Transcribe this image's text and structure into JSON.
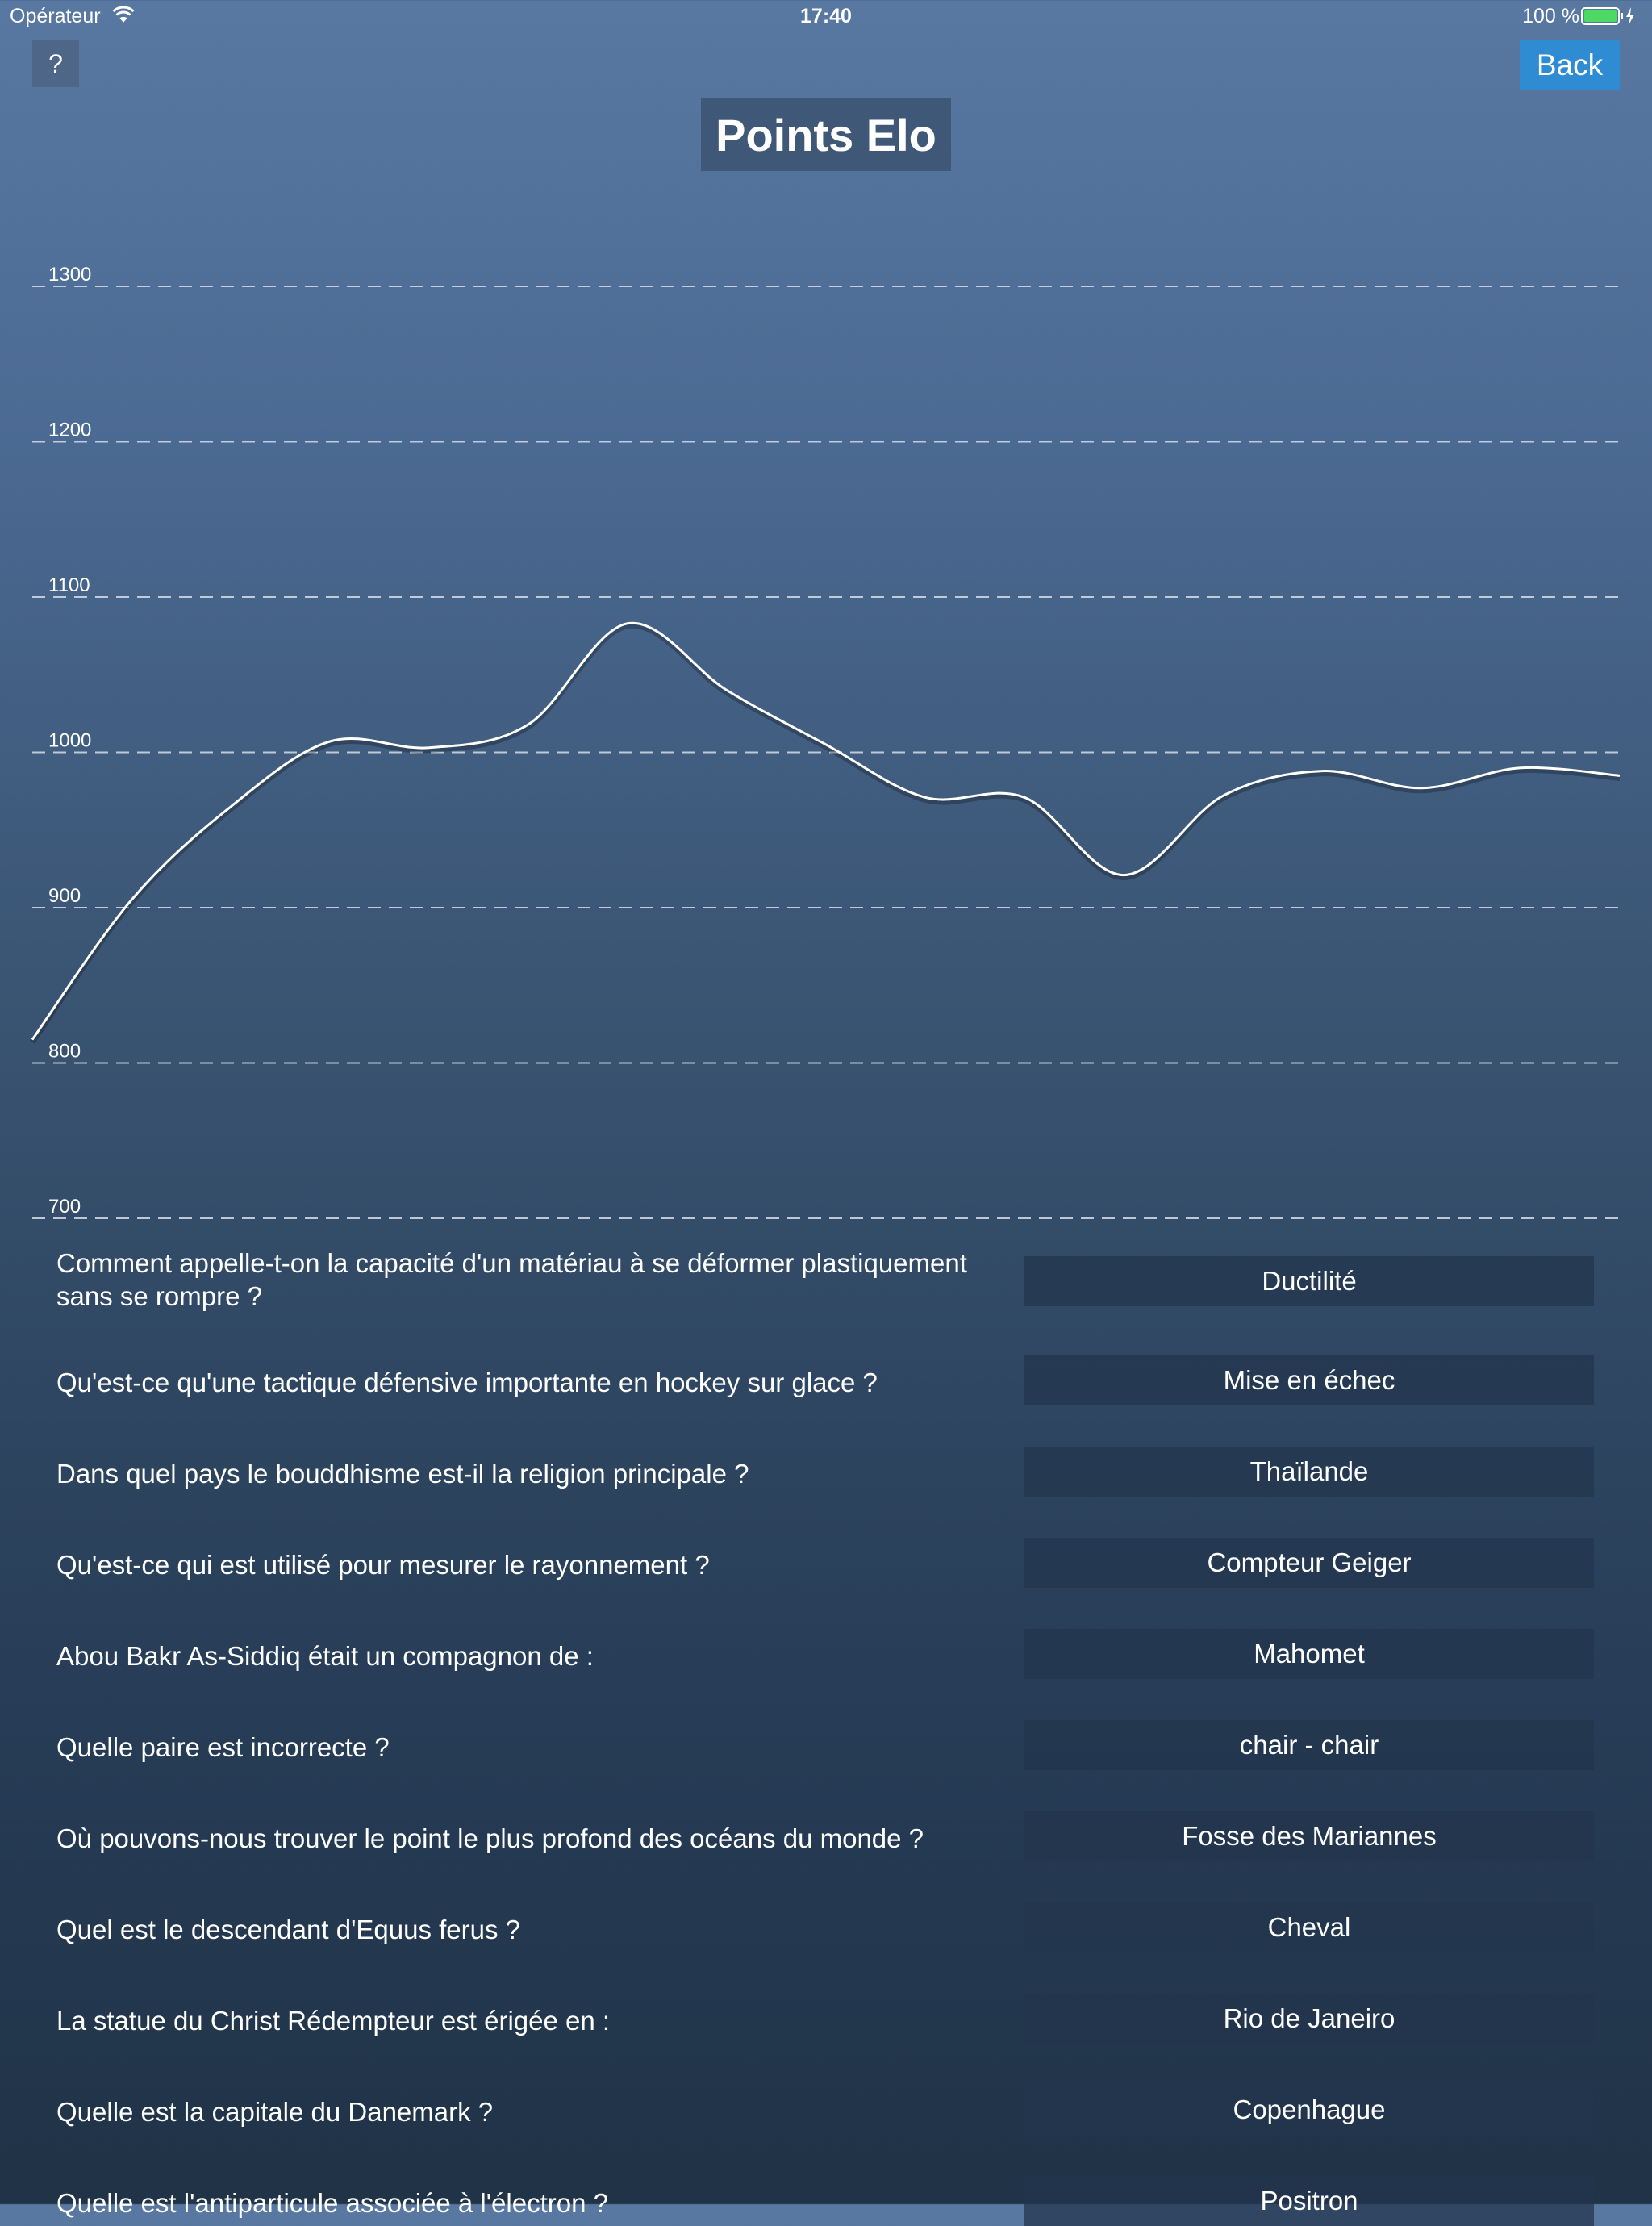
{
  "status_bar": {
    "carrier": "Opérateur",
    "time": "17:40",
    "battery": "100 %",
    "icons": [
      "wifi-icon",
      "battery-icon",
      "charging-bolt-icon"
    ],
    "battery_color": "#4cd964"
  },
  "header": {
    "help_label": "?",
    "back_label": "Back",
    "title": "Points Elo"
  },
  "colors": {
    "back_button": "#2f8bd2",
    "title_background": "#3f5878",
    "line": "#ffffff",
    "grid": "#d6dde8"
  },
  "chart_data": {
    "type": "line",
    "title": "",
    "xlabel": "",
    "ylabel": "",
    "ylim": [
      700,
      1300
    ],
    "yticks": [
      1300,
      1200,
      1100,
      1000,
      900,
      800,
      700
    ],
    "grid": "dashed horizontal",
    "legend": "none",
    "series": [
      {
        "values": [
          815,
          905,
          965,
          1007,
          1003,
          1018,
          1083,
          1040,
          1005,
          971,
          971,
          921,
          972,
          988,
          977,
          990,
          985
        ]
      }
    ]
  },
  "quiz": [
    {
      "question": "Comment appelle-t-on la capacité d'un matériau à se déformer plastiquement sans se rompre ?",
      "answer": "Ductilité"
    },
    {
      "question": "Qu'est-ce qu'une tactique défensive importante en hockey sur glace ?",
      "answer": "Mise en échec"
    },
    {
      "question": "Dans quel pays le bouddhisme est-il la religion principale ?",
      "answer": "Thaïlande"
    },
    {
      "question": "Qu'est-ce qui est utilisé pour mesurer le rayonnement ?",
      "answer": "Compteur Geiger"
    },
    {
      "question": "Abou Bakr As-Siddiq était un compagnon de :",
      "answer": "Mahomet"
    },
    {
      "question": "Quelle paire est incorrecte ?",
      "answer": "chair - chair"
    },
    {
      "question": "Où pouvons-nous trouver le point le plus profond des océans du monde ?",
      "answer": "Fosse des Mariannes"
    },
    {
      "question": "Quel est le descendant d'Equus ferus ?",
      "answer": "Cheval"
    },
    {
      "question": "La statue du Christ Rédempteur est érigée en :",
      "answer": "Rio de Janeiro"
    },
    {
      "question": "Quelle est la capitale du Danemark ?",
      "answer": "Copenhague"
    },
    {
      "question": "Quelle est l'antiparticule associée à l'électron ?",
      "answer": "Positron"
    }
  ]
}
